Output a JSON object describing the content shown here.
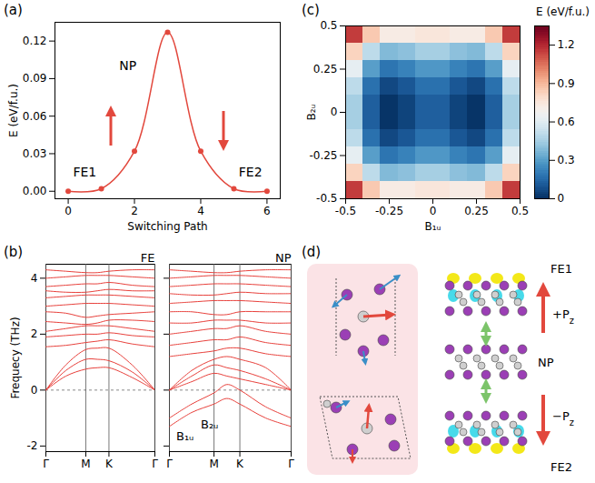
{
  "chart_data": [
    {
      "type": "line",
      "panel": "(a)",
      "x": [
        0,
        1,
        2,
        3,
        4,
        5,
        6
      ],
      "values": [
        0,
        0.002,
        0.032,
        0.127,
        0.032,
        0.002,
        0
      ],
      "color": "#e2483d",
      "marker": "circle",
      "x_label": "Switching Path",
      "y_label": "E (eV/f.u.)",
      "xlim": [
        -0.4,
        6.4
      ],
      "xticks": [
        0,
        2,
        4,
        6
      ],
      "ylim": [
        -0.006,
        0.135
      ],
      "yticks": [
        {
          "value": 0,
          "label": "0.00"
        },
        {
          "value": 0.03,
          "label": "0.03"
        },
        {
          "value": 0.06,
          "label": "0.06"
        },
        {
          "value": 0.09,
          "label": "0.09"
        },
        {
          "value": 0.12,
          "label": "0.12"
        }
      ],
      "annotations": [
        {
          "text": "FE1",
          "x": 0.5,
          "y": 0.015
        },
        {
          "text": "NP",
          "x": 1.8,
          "y": 0.1
        },
        {
          "text": "FE2",
          "x": 5.5,
          "y": 0.015
        }
      ]
    },
    {
      "type": "line",
      "panel": "(b)",
      "title": "FE",
      "color": "#e8413c",
      "x": [
        0,
        0.5,
        1,
        1.29,
        1.58,
        2.16,
        2.73
      ],
      "series": [
        {
          "values": [
            0,
            0.5,
            0.75,
            0.8,
            0.8,
            0.45,
            0
          ]
        },
        {
          "values": [
            0,
            0.7,
            1.1,
            1.1,
            1.05,
            0.65,
            0
          ]
        },
        {
          "values": [
            0,
            0.9,
            1.45,
            1.5,
            1.5,
            0.9,
            0
          ]
        },
        {
          "values": [
            1.55,
            1.6,
            1.7,
            1.75,
            1.8,
            1.65,
            1.55
          ]
        },
        {
          "values": [
            1.9,
            1.95,
            2.0,
            2.0,
            2.05,
            1.95,
            1.9
          ]
        },
        {
          "values": [
            2.1,
            2.2,
            2.3,
            2.3,
            2.3,
            2.2,
            2.1
          ]
        },
        {
          "values": [
            2.45,
            2.4,
            2.35,
            2.4,
            2.5,
            2.5,
            2.45
          ]
        },
        {
          "values": [
            2.8,
            2.75,
            2.6,
            2.65,
            2.7,
            2.75,
            2.8
          ]
        },
        {
          "values": [
            3.0,
            3.05,
            3.1,
            3.1,
            3.1,
            3.05,
            3.0
          ]
        },
        {
          "values": [
            3.3,
            3.35,
            3.4,
            3.4,
            3.4,
            3.35,
            3.3
          ]
        },
        {
          "values": [
            3.55,
            3.5,
            3.5,
            3.55,
            3.6,
            3.55,
            3.55
          ]
        },
        {
          "values": [
            3.7,
            3.75,
            3.8,
            3.8,
            3.85,
            3.75,
            3.7
          ]
        },
        {
          "values": [
            4.0,
            4.05,
            4.1,
            4.1,
            4.1,
            4.05,
            4.0
          ]
        },
        {
          "values": [
            4.3,
            4.25,
            4.2,
            4.2,
            4.25,
            4.3,
            4.3
          ]
        }
      ],
      "xlim": [
        0,
        2.73
      ],
      "xticks": [
        {
          "value": 0,
          "label": "Γ"
        },
        {
          "value": 1,
          "label": "M"
        },
        {
          "value": 1.58,
          "label": "K"
        },
        {
          "value": 2.73,
          "label": "Γ"
        }
      ],
      "ylim": [
        -2.2,
        4.5
      ],
      "yticks": [
        -2,
        0,
        2,
        4
      ],
      "y_label": "Frequecy (THz)",
      "grid": "x"
    },
    {
      "type": "line",
      "title": "NP",
      "color": "#e8413c",
      "x": [
        0,
        0.5,
        1,
        1.29,
        1.58,
        2.16,
        2.73
      ],
      "series": [
        {
          "values": [
            -1.3,
            -0.8,
            -0.5,
            -0.3,
            -0.5,
            -1.0,
            -1.3
          ]
        },
        {
          "values": [
            -1.0,
            -0.5,
            -0.1,
            0.2,
            0.0,
            -0.6,
            -1.0
          ]
        },
        {
          "values": [
            0,
            0.3,
            0.6,
            0.5,
            0.4,
            0.2,
            0
          ]
        },
        {
          "values": [
            0,
            0.5,
            0.9,
            0.8,
            0.7,
            0.4,
            0
          ]
        },
        {
          "values": [
            0,
            0.7,
            1.1,
            1.2,
            1.1,
            0.8,
            0
          ]
        },
        {
          "values": [
            1.2,
            1.3,
            1.4,
            1.5,
            1.5,
            1.3,
            1.2
          ]
        },
        {
          "values": [
            1.6,
            1.7,
            1.8,
            1.8,
            1.9,
            1.7,
            1.6
          ]
        },
        {
          "values": [
            2.0,
            2.1,
            2.2,
            2.2,
            2.3,
            2.1,
            2.0
          ]
        },
        {
          "values": [
            2.4,
            2.4,
            2.5,
            2.5,
            2.5,
            2.4,
            2.4
          ]
        },
        {
          "values": [
            2.8,
            2.8,
            2.7,
            2.7,
            2.8,
            2.8,
            2.8
          ]
        },
        {
          "values": [
            3.1,
            3.15,
            3.2,
            3.2,
            3.2,
            3.15,
            3.1
          ]
        },
        {
          "values": [
            3.45,
            3.4,
            3.4,
            3.45,
            3.5,
            3.45,
            3.45
          ]
        },
        {
          "values": [
            3.7,
            3.75,
            3.8,
            3.8,
            3.8,
            3.75,
            3.7
          ]
        },
        {
          "values": [
            4.0,
            4.05,
            4.1,
            4.1,
            4.1,
            4.05,
            4.0
          ]
        },
        {
          "values": [
            4.3,
            4.25,
            4.2,
            4.2,
            4.25,
            4.3,
            4.3
          ]
        }
      ],
      "xlim": [
        0,
        2.73
      ],
      "xticks": [
        {
          "value": 0,
          "label": "Γ"
        },
        {
          "value": 1,
          "label": "M"
        },
        {
          "value": 1.58,
          "label": "K"
        },
        {
          "value": 2.73,
          "label": "Γ"
        }
      ],
      "ylim": [
        -2.2,
        4.5
      ],
      "yticks": [
        -2,
        0,
        2,
        4
      ],
      "tick_labels": "x",
      "grid": "x",
      "annotations": [
        {
          "text": "B₂ᵤ",
          "x": 0.9,
          "y": -1.25
        },
        {
          "text": "B₁ᵤ",
          "x": 0.35,
          "y": -1.65
        }
      ]
    },
    {
      "type": "heatmap",
      "panel": "(c)",
      "x": [
        -0.45,
        -0.35,
        -0.25,
        -0.15,
        -0.05,
        0.05,
        0.15,
        0.25,
        0.35,
        0.45
      ],
      "y": [
        -0.45,
        -0.35,
        -0.25,
        -0.15,
        -0.05,
        0.05,
        0.15,
        0.25,
        0.35,
        0.45
      ],
      "cells": [
        [
          1.15,
          0.85,
          0.72,
          0.72,
          0.75,
          0.75,
          0.72,
          0.72,
          0.85,
          1.15
        ],
        [
          0.82,
          0.5,
          0.38,
          0.4,
          0.45,
          0.45,
          0.4,
          0.38,
          0.5,
          0.82
        ],
        [
          0.62,
          0.3,
          0.18,
          0.22,
          0.28,
          0.28,
          0.22,
          0.18,
          0.3,
          0.62
        ],
        [
          0.5,
          0.17,
          0.06,
          0.1,
          0.17,
          0.17,
          0.1,
          0.06,
          0.17,
          0.5
        ],
        [
          0.45,
          0.12,
          0.01,
          0.05,
          0.12,
          0.12,
          0.05,
          0.01,
          0.12,
          0.45
        ],
        [
          0.45,
          0.12,
          0.01,
          0.05,
          0.12,
          0.12,
          0.05,
          0.01,
          0.12,
          0.45
        ],
        [
          0.5,
          0.17,
          0.06,
          0.1,
          0.17,
          0.17,
          0.1,
          0.06,
          0.17,
          0.5
        ],
        [
          0.62,
          0.3,
          0.18,
          0.22,
          0.28,
          0.28,
          0.22,
          0.18,
          0.3,
          0.62
        ],
        [
          0.82,
          0.5,
          0.38,
          0.4,
          0.45,
          0.45,
          0.4,
          0.38,
          0.5,
          0.82
        ],
        [
          1.15,
          0.85,
          0.72,
          0.72,
          0.75,
          0.75,
          0.72,
          0.72,
          0.85,
          1.15
        ]
      ],
      "x_label": "B₁ᵤ",
      "y_label": "B₂ᵤ",
      "xlim": [
        -0.5,
        0.5
      ],
      "xticks": [
        -0.5,
        -0.25,
        0,
        0.25,
        0.5
      ],
      "ylim": [
        -0.5,
        0.5
      ],
      "yticks": [
        -0.5,
        -0.25,
        0,
        0.25,
        0.5
      ],
      "color": "rdbu",
      "colorbar": {
        "label": "E (eV/f.u.)",
        "range": [
          0,
          1.35
        ],
        "ticks": [
          0,
          0.3,
          0.6,
          0.9,
          1.2
        ]
      }
    },
    {
      "type": "diagram",
      "panel": "(d)",
      "labels": {
        "top": "FE1",
        "middle": "NP",
        "bottom": "FE2"
      },
      "polarization": {
        "top": "+Pz",
        "bottom": "−Pz"
      }
    }
  ]
}
